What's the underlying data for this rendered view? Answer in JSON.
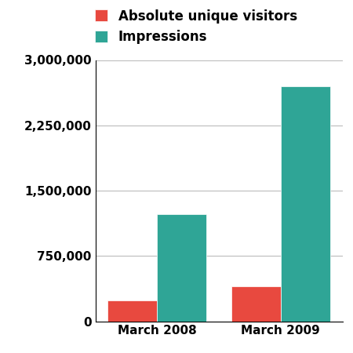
{
  "chart_data": {
    "type": "bar",
    "categories": [
      "March 2008",
      "March 2009"
    ],
    "series": [
      {
        "name": "Absolute unique visitors",
        "color": "#e8493f",
        "values": [
          240000,
          400000
        ]
      },
      {
        "name": "Impressions",
        "color": "#2fa596",
        "values": [
          1230000,
          2700000
        ]
      }
    ],
    "ylim": [
      0,
      3000000
    ],
    "yticks": [
      0,
      {
        "value": 750000,
        "label": "750,000"
      },
      {
        "value": 1500000,
        "label": "1,500,000"
      },
      {
        "value": 2250000,
        "label": "2,250,000"
      },
      {
        "value": 3000000,
        "label": "3,000,000"
      }
    ],
    "grid": true,
    "legend": "upper left"
  }
}
